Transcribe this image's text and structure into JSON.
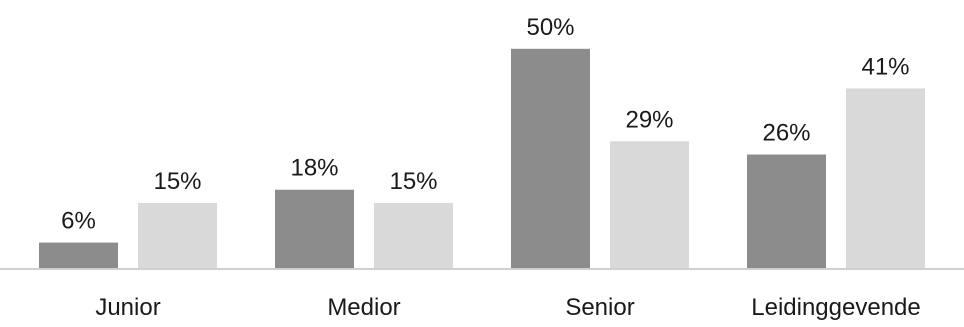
{
  "chart_data": {
    "type": "bar",
    "title": "",
    "xlabel": "",
    "ylabel": "",
    "ylim": [
      0,
      52
    ],
    "grid": false,
    "categories": [
      "Junior",
      "Medior",
      "Senior",
      "Leidinggevende"
    ],
    "series": [
      {
        "values": [
          6,
          18,
          50,
          26
        ],
        "labels": [
          "6%",
          "18%",
          "50%",
          "26%"
        ],
        "color": "#8c8c8c"
      },
      {
        "values": [
          15,
          15,
          29,
          41
        ],
        "labels": [
          "15%",
          "15%",
          "29%",
          "41%"
        ],
        "color": "#d9d9d9"
      }
    ],
    "axis_color": "#d0d0d0"
  }
}
